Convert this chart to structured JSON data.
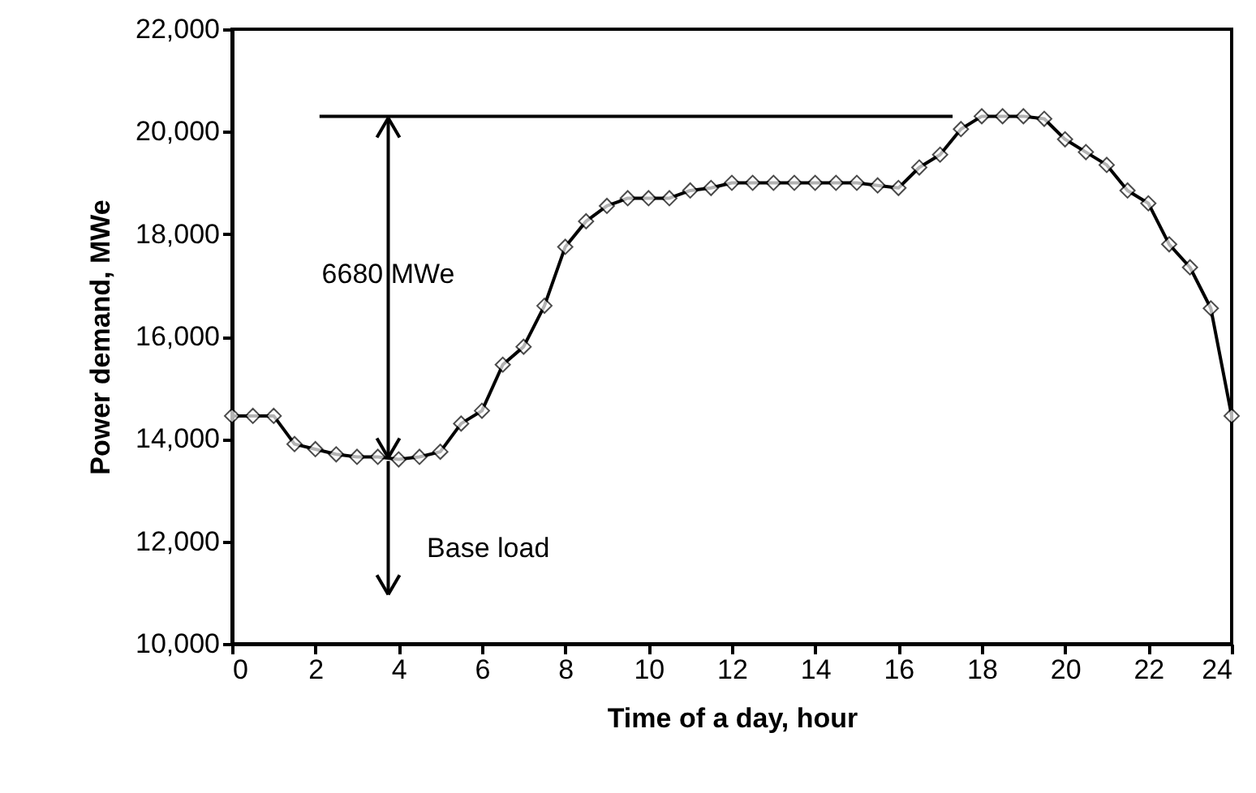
{
  "chart_data": {
    "type": "line",
    "xlabel": "Time of a day, hour",
    "ylabel": "Power demand, MWe",
    "x": [
      0,
      0.5,
      1,
      1.5,
      2,
      2.5,
      3,
      3.5,
      4,
      4.5,
      5,
      5.5,
      6,
      6.5,
      7,
      7.5,
      8,
      8.5,
      9,
      9.5,
      10,
      10.5,
      11,
      11.5,
      12,
      12.5,
      13,
      13.5,
      14,
      14.5,
      15,
      15.5,
      16,
      16.5,
      17,
      17.5,
      18,
      18.5,
      19,
      19.5,
      20,
      20.5,
      21,
      21.5,
      22,
      22.5,
      23,
      23.5,
      24
    ],
    "series": [
      {
        "color": "#000000",
        "values": [
          14450,
          14450,
          14450,
          13900,
          13800,
          13700,
          13650,
          13650,
          13600,
          13650,
          13750,
          14300,
          14550,
          15450,
          15800,
          16600,
          17750,
          18250,
          18550,
          18700,
          18700,
          18700,
          18850,
          18900,
          19000,
          19000,
          19000,
          19000,
          19000,
          19000,
          19000,
          18950,
          18900,
          19300,
          19550,
          20050,
          20300,
          20300,
          20300,
          20250,
          19850,
          19600,
          19350,
          18850,
          18600,
          17800,
          17350,
          16550,
          14450
        ]
      }
    ],
    "xlim": [
      0,
      24
    ],
    "xticks": [
      0,
      2,
      4,
      6,
      8,
      10,
      12,
      14,
      16,
      18,
      20,
      22,
      24
    ],
    "ylim": [
      10000,
      22000
    ],
    "yticks": [
      {
        "value": 10000,
        "label": "10,000"
      },
      {
        "value": 12000,
        "label": "12,000"
      },
      {
        "value": 14000,
        "label": "14,000"
      },
      {
        "value": 16000,
        "label": "16,000"
      },
      {
        "value": 18000,
        "label": "18,000"
      },
      {
        "value": 20000,
        "label": "20,000"
      },
      {
        "value": 22000,
        "label": "22,000"
      }
    ],
    "marker": "diamond",
    "line_style": "solid",
    "grid": false,
    "legend": false,
    "ref_lines": [
      {
        "axis": "y",
        "value": 20300
      }
    ],
    "annotations": [
      "6680 MWe",
      {
        "text": "Base load",
        "x": 3.75,
        "y": 13600
      }
    ]
  }
}
